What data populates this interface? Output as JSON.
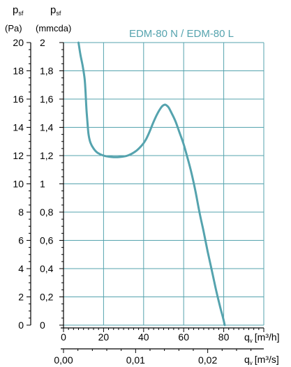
{
  "chart_data": {
    "type": "line",
    "title": "EDM-80 N / EDM-80 L",
    "y_axes": [
      {
        "label_symbol": "p",
        "label_sub": "sf",
        "unit": "(Pa)",
        "ticks": [
          "0",
          "2",
          "4",
          "6",
          "8",
          "10",
          "12",
          "14",
          "16",
          "18",
          "20"
        ],
        "range": [
          0,
          20
        ]
      },
      {
        "label_symbol": "p",
        "label_sub": "sf",
        "unit": "(mmcda)",
        "ticks": [
          "0",
          "0,2",
          "0,4",
          "0,6",
          "0,8",
          "1",
          "1,2",
          "1,4",
          "1,6",
          "1,8",
          "2"
        ],
        "range": [
          0,
          2
        ]
      }
    ],
    "x_axes": [
      {
        "label_symbol": "q",
        "label_sub": "v",
        "unit": "[m³/h]",
        "ticks": [
          "0",
          "20",
          "40",
          "60",
          "80"
        ],
        "tick_values": [
          0,
          20,
          40,
          60,
          80
        ],
        "range": [
          0,
          100
        ]
      },
      {
        "label_symbol": "q",
        "label_sub": "v",
        "unit": "[m³/s]",
        "ticks": [
          "0,00",
          "0,01",
          "0,02"
        ],
        "tick_values": [
          0,
          36,
          72
        ]
      }
    ],
    "grid": true,
    "series": [
      {
        "color": "#55a3ae",
        "x": [
          7.5,
          8.5,
          9.5,
          10.5,
          11,
          11.5,
          12,
          12.5,
          13.5,
          15,
          17,
          20,
          24,
          28,
          32,
          36,
          39,
          41,
          43,
          45,
          47,
          49,
          50.5,
          51.5,
          52.5,
          54,
          56,
          58,
          60,
          62,
          64,
          66,
          68,
          70,
          72,
          74,
          76,
          78,
          79.5,
          80.5
        ],
        "y": [
          20,
          19.1,
          18.4,
          17.5,
          16.5,
          15.2,
          14.3,
          13.5,
          12.9,
          12.5,
          12.2,
          12.0,
          11.9,
          11.9,
          12.0,
          12.3,
          12.7,
          13.1,
          13.7,
          14.4,
          15.0,
          15.45,
          15.6,
          15.55,
          15.4,
          15.0,
          14.4,
          13.6,
          12.8,
          11.8,
          10.7,
          9.4,
          7.9,
          6.6,
          5.2,
          3.9,
          2.6,
          1.4,
          0.6,
          0.0
        ]
      }
    ]
  }
}
